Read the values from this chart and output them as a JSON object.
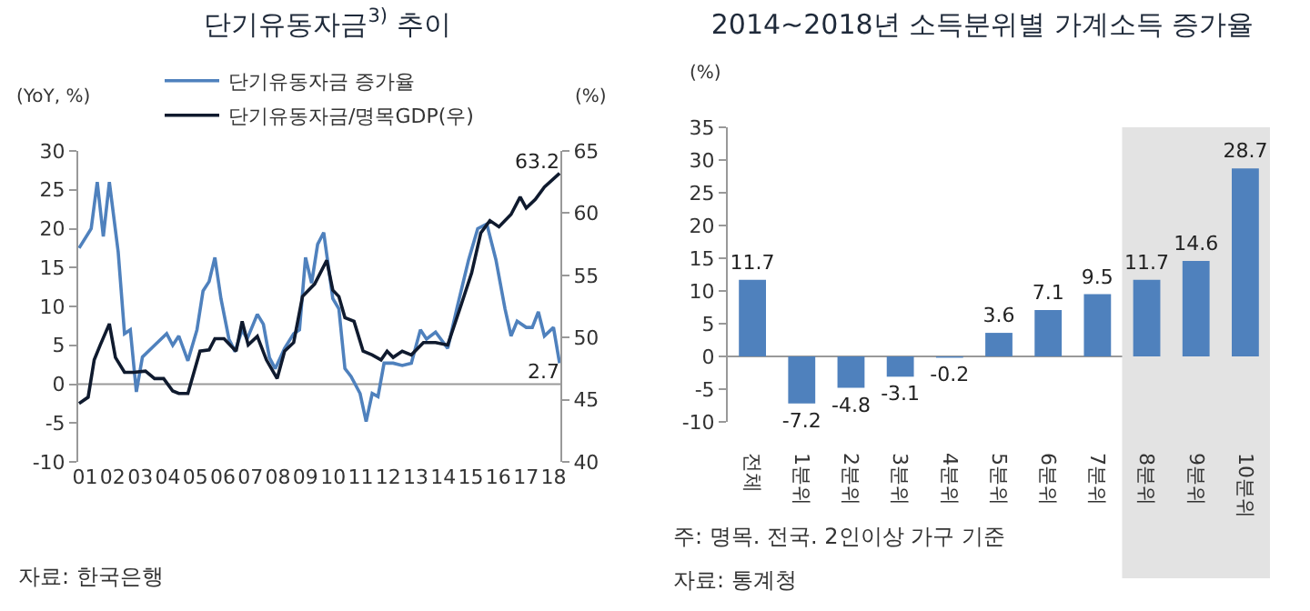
{
  "chart_data": [
    {
      "type": "line",
      "title": "단기유동자금$^{3)}$ 추이",
      "ylabel": "(YoY, %)",
      "y2label": "(%)",
      "legend": "top",
      "grid": false,
      "xlim": [
        0.75,
        18.25
      ],
      "xticks": [
        {
          "value": 1,
          "label": "01"
        },
        {
          "value": 2,
          "label": "02"
        },
        {
          "value": 3,
          "label": "03"
        },
        {
          "value": 4,
          "label": "04"
        },
        {
          "value": 5,
          "label": "05"
        },
        {
          "value": 6,
          "label": "06"
        },
        {
          "value": 7,
          "label": "07"
        },
        {
          "value": 8,
          "label": "08"
        },
        {
          "value": 9,
          "label": "09"
        },
        10,
        11,
        12,
        13,
        14,
        15,
        16,
        17,
        18
      ],
      "ref_lines": [
        {
          "axis": "y",
          "value": 0
        }
      ],
      "ylim": [
        -10,
        30
      ],
      "yticks": [
        -10,
        -5,
        0,
        5,
        10,
        15,
        20,
        25,
        30
      ],
      "y2lim": [
        40,
        65
      ],
      "y2ticks": [
        40,
        45,
        50,
        55,
        60,
        65
      ],
      "series": [
        {
          "name": "단기유동자금 증가율",
          "color": "#4f81bd",
          "x": [
            0.78,
            1.22,
            1.44,
            1.66,
            1.88,
            2.2,
            2.43,
            2.64,
            2.86,
            3.08,
            3.52,
            3.96,
            4.18,
            4.4,
            4.73,
            5.06,
            5.28,
            5.5,
            5.71,
            5.93,
            6.22,
            6.44,
            6.7,
            6.88,
            7.25,
            7.47,
            7.69,
            7.9,
            8.24,
            8.57,
            8.78,
            9.0,
            9.22,
            9.44,
            9.66,
            9.99,
            10.21,
            10.43,
            10.65,
            10.98,
            11.2,
            11.42,
            11.63,
            11.85,
            12.18,
            12.51,
            12.84,
            13.17,
            13.39,
            13.72,
            14.16,
            14.49,
            14.92,
            15.25,
            15.58,
            15.91,
            16.24,
            16.46,
            16.68,
            17.01,
            17.23,
            17.45,
            17.67,
            18.0,
            18.22
          ],
          "values": [
            17.5,
            20,
            26,
            19,
            26,
            17,
            6.5,
            7,
            -1,
            3.5,
            5,
            6.5,
            5,
            6.2,
            3,
            7,
            12,
            13.2,
            16.3,
            11,
            5.8,
            4.2,
            7,
            5.8,
            9,
            7.7,
            3.4,
            2,
            4.6,
            6.5,
            7,
            16.3,
            13,
            18,
            19.5,
            11,
            9.7,
            2,
            1,
            -1.2,
            -4.8,
            -1.2,
            -1.6,
            2.7,
            2.7,
            2.4,
            2.7,
            7,
            5.8,
            6.7,
            4.6,
            9.7,
            16,
            20,
            20.6,
            16,
            9.7,
            6.2,
            8.1,
            7.3,
            7.3,
            9.3,
            6.2,
            7.3,
            2.7
          ],
          "value_labels": [
            null,
            null,
            null,
            null,
            null,
            null,
            null,
            null,
            null,
            null,
            null,
            null,
            null,
            null,
            null,
            null,
            null,
            null,
            null,
            null,
            null,
            null,
            null,
            null,
            null,
            null,
            null,
            null,
            null,
            null,
            null,
            null,
            null,
            null,
            null,
            null,
            null,
            null,
            null,
            null,
            null,
            null,
            null,
            null,
            null,
            null,
            null,
            null,
            null,
            null,
            null,
            null,
            null,
            null,
            null,
            null,
            null,
            null,
            null,
            null,
            null,
            null,
            null,
            null,
            "2.7"
          ]
        },
        {
          "name": "단기유동자금/명목GDP(우)",
          "color": "#0f1a2e",
          "axis": "y2",
          "x": [
            0.78,
            1.11,
            1.33,
            1.55,
            1.88,
            2.1,
            2.43,
            2.76,
            3.19,
            3.52,
            3.85,
            4.18,
            4.4,
            4.73,
            5.17,
            5.5,
            5.71,
            6.04,
            6.48,
            6.7,
            6.92,
            7.25,
            7.58,
            7.97,
            8.24,
            8.57,
            8.89,
            9.33,
            9.77,
            9.99,
            10.21,
            10.43,
            10.76,
            11.09,
            11.42,
            11.74,
            11.96,
            12.18,
            12.51,
            12.84,
            13.28,
            13.72,
            14.16,
            14.6,
            15.03,
            15.36,
            15.69,
            16.02,
            16.46,
            16.79,
            17.01,
            17.34,
            17.67,
            18.22
          ],
          "values": [
            44.7,
            45.2,
            48.2,
            49.4,
            51.1,
            48.4,
            47.2,
            47.2,
            47.3,
            46.7,
            46.7,
            45.7,
            45.5,
            45.5,
            48.9,
            49,
            49.9,
            49.9,
            48.9,
            51.3,
            49.4,
            50.1,
            48.2,
            46.7,
            48.9,
            49.6,
            53.3,
            54.3,
            56.2,
            53.8,
            53.3,
            51.6,
            51.3,
            48.9,
            48.6,
            48.2,
            48.9,
            48.4,
            48.9,
            48.6,
            49.6,
            49.6,
            49.4,
            52.3,
            55.2,
            58.4,
            59.4,
            58.9,
            59.9,
            61.3,
            60.4,
            61.1,
            62.1,
            63.2
          ],
          "value_labels": [
            null,
            null,
            null,
            null,
            null,
            null,
            null,
            null,
            null,
            null,
            null,
            null,
            null,
            null,
            null,
            null,
            null,
            null,
            null,
            null,
            null,
            null,
            null,
            null,
            null,
            null,
            null,
            null,
            null,
            null,
            null,
            null,
            null,
            null,
            null,
            null,
            null,
            null,
            null,
            null,
            null,
            null,
            null,
            null,
            null,
            null,
            null,
            null,
            null,
            null,
            null,
            null,
            null,
            "63.2"
          ]
        }
      ],
      "annotations": [
        "자료: 한국은행"
      ]
    },
    {
      "type": "bar",
      "title": "2014~2018년 소득분위별 가계소득 증가율",
      "ylabel": "(%)",
      "legend": false,
      "grid": false,
      "data_labels": true,
      "categories": [
        "전체",
        "1분위",
        "2분위",
        "3분위",
        "4분위",
        "5분위",
        "6분위",
        "7분위",
        "8분위",
        "9분위",
        "10분위"
      ],
      "values": [
        11.7,
        -7.2,
        -4.8,
        -3.1,
        -0.2,
        3.6,
        7.1,
        9.5,
        11.7,
        14.6,
        28.7
      ],
      "color": "#4f81bd",
      "ylim": [
        -10,
        35
      ],
      "yticks": [
        -10,
        -5,
        0,
        5,
        10,
        15,
        20,
        25,
        30,
        35
      ],
      "bands": [
        {
          "axis": "x",
          "from": "8분위",
          "to": "10분위",
          "color": "#e3e3e3"
        }
      ],
      "ref_lines": [
        {
          "axis": "y",
          "value": 0
        }
      ],
      "annotations": [
        "주: 명목. 전국. 2인이상 가구 기준",
        "자료: 통계청"
      ]
    }
  ]
}
